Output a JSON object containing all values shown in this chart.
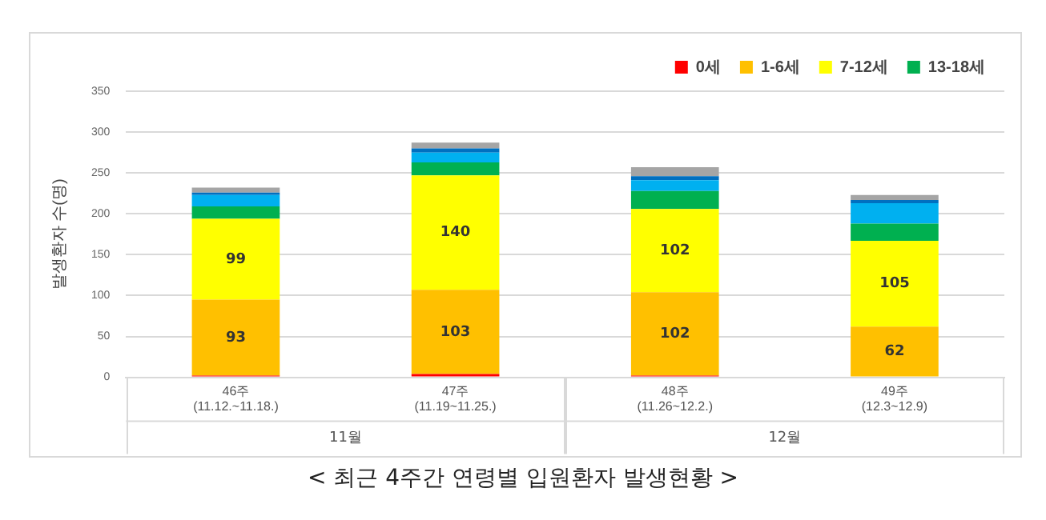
{
  "chart_data": {
    "type": "bar",
    "title": "< 최근 4주간 연령별 입원환자 발생현황 >",
    "ylabel": "발생환자 수(명)",
    "categories": [
      "46주\n(11.12.~11.18.)",
      "47주\n(11.19~11.25.)",
      "48주\n(11.26~12.2.)",
      "49주\n(12.3~12.9)"
    ],
    "annotations": [
      "11월",
      "12월"
    ],
    "stacked": true,
    "ylim": [
      0,
      350
    ],
    "yticks": [
      0,
      50,
      100,
      150,
      200,
      250,
      300,
      350
    ],
    "grid": "y",
    "legend": "top right",
    "series": [
      {
        "name": "0세",
        "color": "#ff0000",
        "values": [
          2,
          4,
          2,
          0
        ]
      },
      {
        "name": "1-6세",
        "color": "#ffc000",
        "values": [
          93,
          103,
          102,
          62
        ],
        "value_labels": [
          "93",
          "103",
          "102",
          "62"
        ]
      },
      {
        "name": "7-12세",
        "color": "#ffff00",
        "values": [
          99,
          140,
          102,
          105
        ],
        "value_labels": [
          "99",
          "140",
          "102",
          "105"
        ]
      },
      {
        "name": "13-18세",
        "color": "#00b050",
        "values": [
          15,
          16,
          22,
          21
        ]
      },
      {
        "color": "#00b0f0",
        "values": [
          14,
          12,
          13,
          25
        ]
      },
      {
        "color": "#0070c0",
        "values": [
          3,
          5,
          5,
          4
        ]
      },
      {
        "color": "#a5a5a5",
        "values": [
          6,
          7,
          11,
          6
        ]
      }
    ]
  }
}
